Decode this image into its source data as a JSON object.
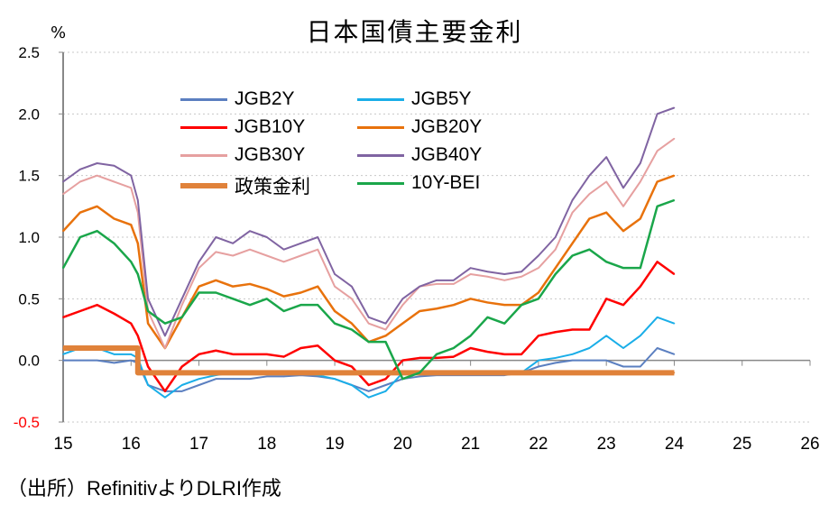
{
  "title": "日本国債主要金利",
  "unit": "%",
  "source": "（出所）RefinitivよりDLRI作成",
  "chart_data": {
    "type": "line",
    "title": "日本国債主要金利",
    "ylabel": "%",
    "xlabel": "",
    "xlim": [
      15,
      26
    ],
    "ylim": [
      -0.5,
      2.5
    ],
    "xticks": [
      "15",
      "16",
      "17",
      "18",
      "19",
      "20",
      "21",
      "22",
      "23",
      "24",
      "25",
      "26"
    ],
    "yticks": [
      "2.5",
      "2.0",
      "1.5",
      "1.0",
      "0.5",
      "0.0",
      "-0.5"
    ],
    "grid": "horizontal dotted",
    "legend_position": "top-left inside",
    "x": [
      15.0,
      15.25,
      15.5,
      15.75,
      16.0,
      16.1,
      16.25,
      16.5,
      16.75,
      17.0,
      17.25,
      17.5,
      17.75,
      18.0,
      18.25,
      18.5,
      18.75,
      19.0,
      19.25,
      19.5,
      19.75,
      20.0,
      20.25,
      20.5,
      20.75,
      21.0,
      21.25,
      21.5,
      21.75,
      22.0,
      22.25,
      22.5,
      22.75,
      23.0,
      23.25,
      23.5,
      23.75,
      24.0
    ],
    "series": [
      {
        "name": "JGB2Y",
        "color": "#5b7fc0",
        "width": 2,
        "values": [
          0.0,
          0.0,
          0.0,
          -0.02,
          0.0,
          -0.02,
          -0.2,
          -0.25,
          -0.25,
          -0.2,
          -0.15,
          -0.15,
          -0.15,
          -0.13,
          -0.13,
          -0.12,
          -0.13,
          -0.15,
          -0.2,
          -0.25,
          -0.2,
          -0.15,
          -0.13,
          -0.12,
          -0.12,
          -0.12,
          -0.12,
          -0.12,
          -0.1,
          -0.05,
          -0.02,
          0.0,
          0.0,
          0.0,
          -0.05,
          -0.05,
          0.1,
          0.05
        ]
      },
      {
        "name": "JGB5Y",
        "color": "#1aaee8",
        "width": 2,
        "values": [
          0.05,
          0.1,
          0.1,
          0.05,
          0.05,
          0.02,
          -0.2,
          -0.3,
          -0.2,
          -0.15,
          -0.12,
          -0.1,
          -0.1,
          -0.1,
          -0.1,
          -0.1,
          -0.12,
          -0.15,
          -0.2,
          -0.3,
          -0.25,
          -0.1,
          -0.1,
          -0.1,
          -0.1,
          -0.1,
          -0.1,
          -0.1,
          -0.1,
          0.0,
          0.02,
          0.05,
          0.1,
          0.2,
          0.1,
          0.2,
          0.35,
          0.3
        ]
      },
      {
        "name": "JGB10Y",
        "color": "#ff0000",
        "width": 2.5,
        "values": [
          0.35,
          0.4,
          0.45,
          0.38,
          0.3,
          0.2,
          -0.05,
          -0.25,
          -0.05,
          0.05,
          0.08,
          0.05,
          0.05,
          0.05,
          0.03,
          0.1,
          0.12,
          0.0,
          -0.05,
          -0.2,
          -0.15,
          0.0,
          0.02,
          0.02,
          0.03,
          0.1,
          0.07,
          0.05,
          0.05,
          0.2,
          0.23,
          0.25,
          0.25,
          0.5,
          0.45,
          0.6,
          0.8,
          0.7
        ]
      },
      {
        "name": "JGB20Y",
        "color": "#e8720c",
        "width": 2.5,
        "values": [
          1.05,
          1.2,
          1.25,
          1.15,
          1.1,
          0.95,
          0.3,
          0.1,
          0.35,
          0.6,
          0.65,
          0.6,
          0.62,
          0.58,
          0.52,
          0.55,
          0.6,
          0.4,
          0.3,
          0.15,
          0.2,
          0.3,
          0.4,
          0.42,
          0.45,
          0.5,
          0.47,
          0.45,
          0.45,
          0.55,
          0.75,
          0.95,
          1.15,
          1.2,
          1.05,
          1.15,
          1.45,
          1.5
        ]
      },
      {
        "name": "JGB30Y",
        "color": "#e6a0a0",
        "width": 2,
        "values": [
          1.35,
          1.45,
          1.5,
          1.45,
          1.4,
          1.2,
          0.4,
          0.1,
          0.45,
          0.75,
          0.88,
          0.85,
          0.9,
          0.85,
          0.8,
          0.85,
          0.9,
          0.6,
          0.5,
          0.3,
          0.25,
          0.45,
          0.6,
          0.62,
          0.62,
          0.7,
          0.68,
          0.65,
          0.68,
          0.75,
          0.9,
          1.2,
          1.35,
          1.45,
          1.25,
          1.45,
          1.7,
          1.8
        ]
      },
      {
        "name": "JGB40Y",
        "color": "#8064a2",
        "width": 2,
        "values": [
          1.45,
          1.55,
          1.6,
          1.58,
          1.5,
          1.3,
          0.5,
          0.2,
          0.5,
          0.8,
          1.0,
          0.95,
          1.05,
          1.0,
          0.9,
          0.95,
          1.0,
          0.7,
          0.6,
          0.35,
          0.3,
          0.5,
          0.6,
          0.65,
          0.65,
          0.75,
          0.72,
          0.7,
          0.72,
          0.85,
          1.0,
          1.3,
          1.5,
          1.65,
          1.4,
          1.6,
          2.0,
          2.05
        ]
      },
      {
        "name": "政策金利",
        "color": "#e0823a",
        "width": 6,
        "step": true,
        "values": [
          0.1,
          0.1,
          0.1,
          0.1,
          0.1,
          -0.1,
          -0.1,
          -0.1,
          -0.1,
          -0.1,
          -0.1,
          -0.1,
          -0.1,
          -0.1,
          -0.1,
          -0.1,
          -0.1,
          -0.1,
          -0.1,
          -0.1,
          -0.1,
          -0.1,
          -0.1,
          -0.1,
          -0.1,
          -0.1,
          -0.1,
          -0.1,
          -0.1,
          -0.1,
          -0.1,
          -0.1,
          -0.1,
          -0.1,
          -0.1,
          -0.1,
          -0.1,
          -0.1
        ]
      },
      {
        "name": "10Y-BEI",
        "color": "#1aa64a",
        "width": 2.5,
        "values": [
          0.75,
          1.0,
          1.05,
          0.95,
          0.8,
          0.7,
          0.4,
          0.3,
          0.35,
          0.55,
          0.55,
          0.5,
          0.45,
          0.5,
          0.4,
          0.45,
          0.45,
          0.3,
          0.25,
          0.15,
          0.15,
          -0.15,
          -0.1,
          0.05,
          0.1,
          0.2,
          0.35,
          0.3,
          0.45,
          0.5,
          0.7,
          0.85,
          0.9,
          0.8,
          0.75,
          0.75,
          1.25,
          1.3
        ]
      }
    ]
  }
}
